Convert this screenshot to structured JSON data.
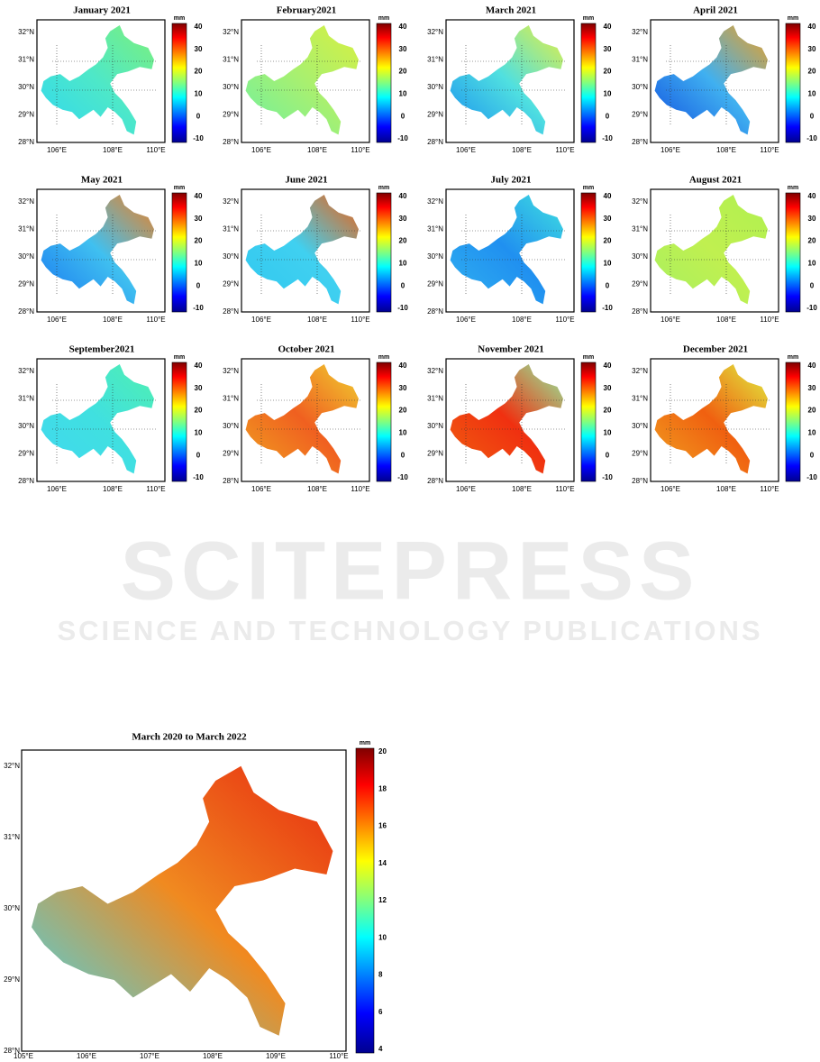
{
  "small_panels": {
    "unit": "mm",
    "colorbar_ticks": [
      40,
      30,
      20,
      10,
      0,
      -10
    ],
    "lat_labels": [
      "32°N",
      "31°N",
      "30°N",
      "29°N",
      "28°N"
    ],
    "lon_labels": [
      "106°E",
      "108°E",
      "110°E"
    ],
    "items": [
      {
        "title": "January 2021",
        "colors": [
          "#7df07a",
          "#4ee8c8",
          "#30d8f0"
        ]
      },
      {
        "title": "February2021",
        "colors": [
          "#d8f040",
          "#a8f070",
          "#70f0a0"
        ]
      },
      {
        "title": "March 2021",
        "colors": [
          "#e8f040",
          "#50e0e0",
          "#1890f0"
        ]
      },
      {
        "title": "April 2021",
        "colors": [
          "#f0a020",
          "#40b0f0",
          "#1050e0"
        ]
      },
      {
        "title": "May 2021",
        "colors": [
          "#f08020",
          "#40c0f0",
          "#1878f0"
        ]
      },
      {
        "title": "June 2021",
        "colors": [
          "#f06010",
          "#40d0f0",
          "#30c8f0"
        ]
      },
      {
        "title": "July 2021",
        "colors": [
          "#40e0e0",
          "#2090f0",
          "#30b0f0"
        ]
      },
      {
        "title": "August 2021",
        "colors": [
          "#b0f050",
          "#c0f050",
          "#a8f060"
        ]
      },
      {
        "title": "September2021",
        "colors": [
          "#50f0b0",
          "#40e0e0",
          "#40d8f0"
        ]
      },
      {
        "title": "October 2021",
        "colors": [
          "#f0d030",
          "#f06020",
          "#f0a020"
        ]
      },
      {
        "title": "November 2021",
        "colors": [
          "#90f0a0",
          "#f03010",
          "#f06010"
        ]
      },
      {
        "title": "December 2021",
        "colors": [
          "#e0f040",
          "#f06010",
          "#f0a020"
        ]
      }
    ]
  },
  "overview": {
    "title": "March 2020 to March 2022",
    "unit": "mm",
    "colorbar_ticks": [
      20,
      18,
      16,
      14,
      12,
      10,
      8,
      6,
      4
    ],
    "lat_labels": [
      "32°N",
      "31°N",
      "30°N",
      "29°N",
      "28°N"
    ],
    "lon_labels": [
      "105°E",
      "106°E",
      "107°E",
      "108°E",
      "109°E",
      "110°E"
    ],
    "colors": [
      "#e82a10",
      "#f08a20",
      "#40d8f0"
    ]
  },
  "watermark": {
    "name": "SCITEPRESS",
    "tagline": "SCIENCE AND TECHNOLOGY PUBLICATIONS"
  }
}
